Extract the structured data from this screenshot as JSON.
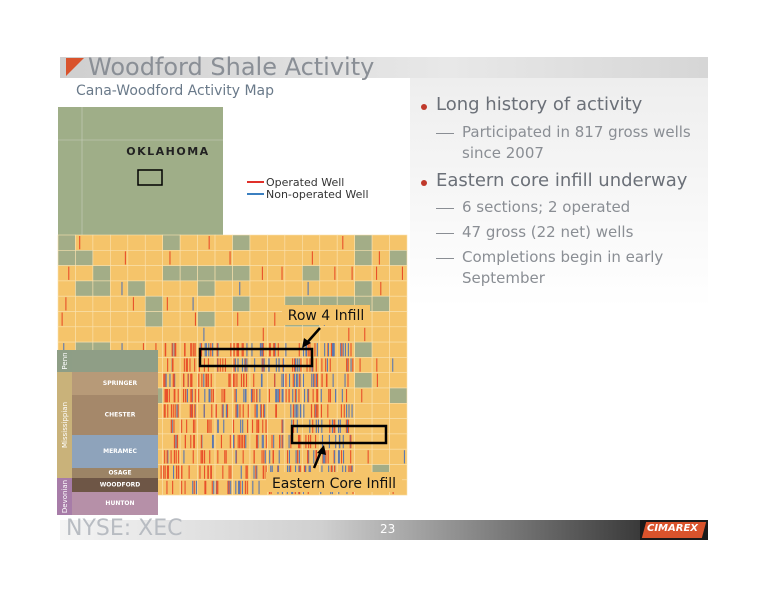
{
  "header": {
    "title": "Woodford Shale Activity",
    "subtitle": "Cana-Woodford Activity Map"
  },
  "map": {
    "state_label": "OKLAHOMA",
    "legend": [
      "Operated Well",
      "Non-operated Well"
    ],
    "annotations": [
      "Row 4 Infill",
      "Eastern Core Infill"
    ],
    "column": {
      "periods": [
        "Penn",
        "Mississippian",
        "Devonian"
      ],
      "formations": [
        "SPRINGER",
        "CHESTER",
        "MERAMEC",
        "OSAGE",
        "WOODFORD",
        "HUNTON"
      ]
    }
  },
  "bullets": [
    {
      "text": "Long history of activity",
      "items": [
        "Participated in 817 gross wells since 2007"
      ]
    },
    {
      "text": "Eastern core infill underway",
      "items": [
        "6 sections; 2 operated",
        "47 gross (22 net) wells",
        "Completions begin in early September"
      ]
    }
  ],
  "footer": {
    "ticker": "NYSE: XEC",
    "page": "23",
    "logo": "CIMAREX"
  }
}
